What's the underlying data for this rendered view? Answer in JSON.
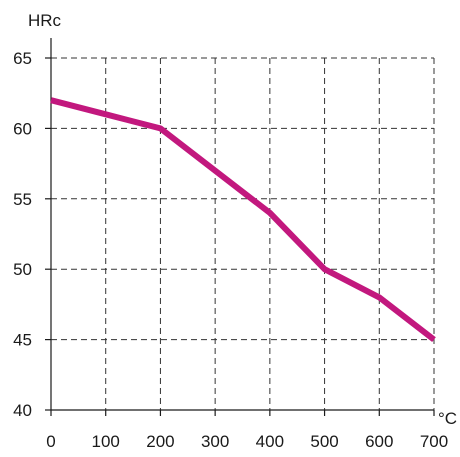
{
  "chart_data": {
    "type": "line",
    "title": "",
    "xlabel": "°C",
    "ylabel": "HRc",
    "xlim": [
      0,
      700
    ],
    "ylim": [
      40,
      65
    ],
    "xticks": [
      0,
      100,
      200,
      300,
      400,
      500,
      600,
      700
    ],
    "yticks": [
      40,
      45,
      50,
      55,
      60,
      65
    ],
    "grid": true,
    "series": [
      {
        "color": "#c2187e",
        "x": [
          0,
          100,
          200,
          300,
          400,
          500,
          600,
          700
        ],
        "y": [
          62,
          61,
          60,
          57,
          54,
          50,
          48,
          45
        ]
      }
    ]
  }
}
